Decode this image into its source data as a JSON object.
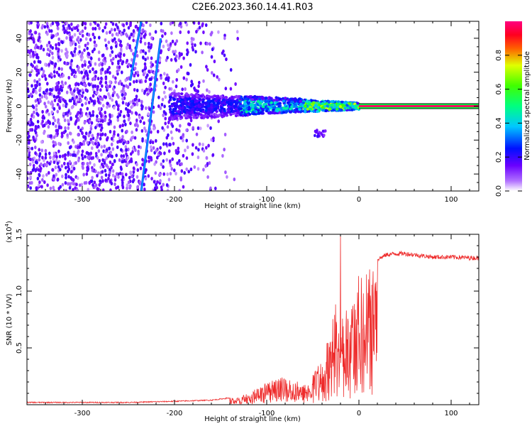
{
  "title": "C2E6.2023.360.14.41.R03",
  "colors": {
    "snr_line": "#ee2b2b",
    "axis": "#000000",
    "background": "#ffffff"
  },
  "chart_data": [
    {
      "type": "heatmap",
      "xlabel": "Height of straight line (km)",
      "ylabel": "Frequency (Hz)",
      "xlim": [
        -360,
        130
      ],
      "ylim": [
        -50,
        50
      ],
      "x_ticks": [
        -300,
        -200,
        -100,
        0,
        100
      ],
      "y_ticks": [
        -40,
        -20,
        0,
        20,
        40
      ],
      "grid": false,
      "colorbar": {
        "label": "Normalized spectral amplitude",
        "range": [
          0.0,
          1.0
        ],
        "ticks": [
          "0.0",
          "0.2",
          "0.4",
          "0.6",
          "0.8"
        ],
        "colormap": [
          "#ffffff",
          "#8a00ff",
          "#0000ff",
          "#00e5ff",
          "#00ff00",
          "#ffff00",
          "#ff0000",
          "#ff0090"
        ]
      },
      "features": {
        "carrier": {
          "x_range": [
            0,
            130
          ],
          "frequency": 0,
          "amplitude": 0.95
        },
        "signal_band": {
          "x_range": [
            -205,
            0
          ],
          "frequency_center": 0,
          "frequency_halfwidth": [
            8,
            2
          ]
        },
        "streaks": [
          {
            "x_start": -248,
            "x_end": -236,
            "freq_start": 15,
            "freq_end": 50
          },
          {
            "x_start": -236,
            "x_end": -215,
            "freq_start": -50,
            "freq_end": 40
          }
        ],
        "noise_region_x": [
          -360,
          -140
        ]
      }
    },
    {
      "type": "line",
      "xlabel": "Height of straight line (km)",
      "ylabel": "SNR (10 * V/V)",
      "y_multiplier": "(x10^4)",
      "xlim": [
        -360,
        130
      ],
      "ylim": [
        0,
        1.5
      ],
      "x_ticks": [
        -300,
        -200,
        -100,
        0,
        100
      ],
      "y_ticks": [
        0.5,
        1.0,
        1.5
      ],
      "grid": false,
      "series": [
        {
          "envelope_x": [
            -360,
            -250,
            -200,
            -160,
            -140,
            -120,
            -100,
            -80,
            -60,
            -45,
            -35,
            -25,
            -20,
            -10,
            0,
            10,
            20,
            30,
            40,
            50,
            60,
            80,
            100,
            130
          ],
          "envelope_y": [
            0.02,
            0.02,
            0.03,
            0.04,
            0.06,
            0.1,
            0.2,
            0.25,
            0.18,
            0.35,
            0.55,
            0.9,
            0.85,
            1.0,
            1.15,
            1.2,
            1.28,
            1.32,
            1.33,
            1.33,
            1.32,
            1.3,
            1.3,
            1.29
          ],
          "spike": {
            "x": -20,
            "y": 1.52
          }
        }
      ]
    }
  ]
}
